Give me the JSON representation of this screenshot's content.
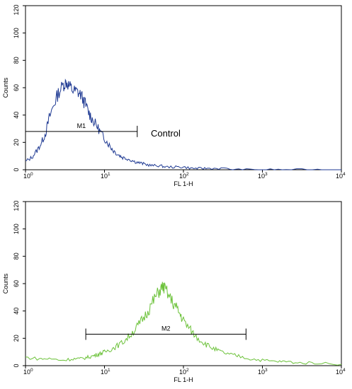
{
  "chart_data": [
    {
      "type": "line",
      "xlabel": "FL 1-H",
      "ylabel": "Counts",
      "x_scale": "log",
      "xlim": [
        1,
        10000
      ],
      "ylim": [
        0,
        120
      ],
      "x_ticks": [
        {
          "base": "10",
          "exp": "0"
        },
        {
          "base": "10",
          "exp": "1"
        },
        {
          "base": "10",
          "exp": "2"
        },
        {
          "base": "10",
          "exp": "3"
        },
        {
          "base": "10",
          "exp": "4"
        }
      ],
      "y_ticks": [
        "0",
        "20",
        "40",
        "60",
        "80",
        "100",
        "120"
      ],
      "color": "#1f3a93",
      "series": [
        {
          "x": [
            1,
            1.2,
            1.4,
            1.6,
            1.8,
            2,
            2.3,
            2.6,
            3,
            3.3,
            3.6,
            4,
            4.5,
            5,
            5.6,
            6.3,
            7,
            8,
            9,
            10,
            11.5,
            13,
            15,
            17,
            20,
            24,
            28,
            33,
            40,
            50,
            60,
            80,
            100,
            130,
            160,
            200,
            300,
            500,
            1000,
            2000,
            5000,
            10000
          ],
          "y": [
            6,
            9,
            14,
            20,
            27,
            38,
            48,
            56,
            62,
            64,
            61,
            58,
            57,
            55,
            49,
            42,
            37,
            32,
            27,
            23,
            18,
            14,
            11,
            9,
            8,
            6,
            5,
            4,
            3,
            3,
            2,
            2,
            2,
            1,
            1,
            1,
            1,
            0,
            0,
            0,
            0,
            0
          ]
        }
      ],
      "gate": {
        "label": "M1",
        "x_start": 1,
        "x_end": 26,
        "y": 28
      },
      "annotation": "Control"
    },
    {
      "type": "line",
      "xlabel": "FL 1-H",
      "ylabel": "Counts",
      "x_scale": "log",
      "xlim": [
        1,
        10000
      ],
      "ylim": [
        0,
        120
      ],
      "x_ticks": [
        {
          "base": "10",
          "exp": "0"
        },
        {
          "base": "10",
          "exp": "1"
        },
        {
          "base": "10",
          "exp": "2"
        },
        {
          "base": "10",
          "exp": "3"
        },
        {
          "base": "10",
          "exp": "4"
        }
      ],
      "y_ticks": [
        "0",
        "20",
        "40",
        "60",
        "80",
        "100",
        "120"
      ],
      "color": "#6cc23a",
      "series": [
        {
          "x": [
            1,
            1.5,
            2,
            3,
            4,
            5,
            6,
            7,
            8,
            9,
            10,
            12,
            14,
            17,
            20,
            24,
            28,
            33,
            38,
            44,
            50,
            55,
            60,
            70,
            80,
            90,
            100,
            120,
            140,
            170,
            200,
            250,
            300,
            400,
            500,
            700,
            1000,
            1500,
            2000,
            3000,
            5000,
            10000
          ],
          "y": [
            6,
            5,
            5,
            4,
            5,
            5,
            6,
            7,
            8,
            9,
            10,
            12,
            14,
            17,
            21,
            26,
            31,
            37,
            43,
            50,
            55,
            58,
            55,
            48,
            43,
            38,
            33,
            27,
            22,
            18,
            15,
            12,
            10,
            8,
            7,
            5,
            4,
            3,
            3,
            2,
            2,
            1
          ]
        }
      ],
      "gate": {
        "label": "M2",
        "x_start": 5.8,
        "x_end": 620,
        "y": 23
      }
    }
  ]
}
